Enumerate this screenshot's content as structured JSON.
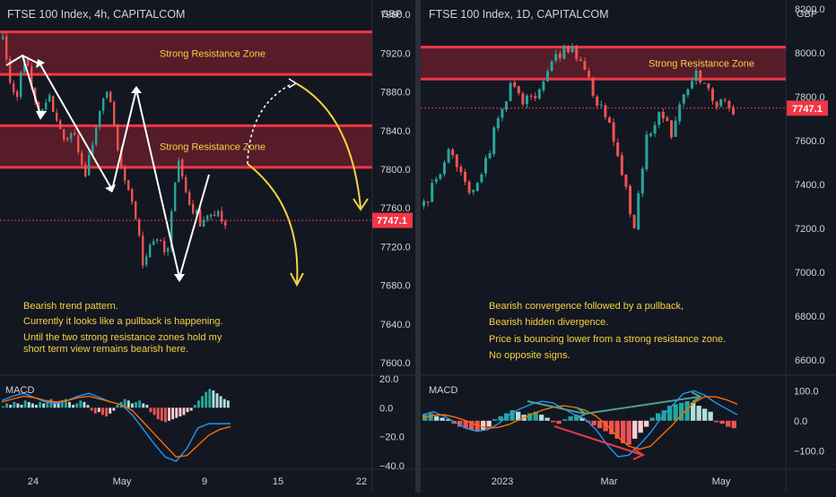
{
  "chart_data": [
    {
      "type": "candlestick",
      "title": "FTSE 100 Index, 4h, CAPITALCOM",
      "currency": "GBP",
      "last_price": "7747.1",
      "x_ticks": [
        "24",
        "May",
        "9",
        "15",
        "22"
      ],
      "price_ticks": [
        "7960.0",
        "7920.0",
        "7880.0",
        "7840.0",
        "7800.0",
        "7760.0",
        "7720.0",
        "7680.0",
        "7640.0",
        "7600.0"
      ],
      "price_axis": {
        "min": 7587,
        "max": 7975
      },
      "zones": [
        {
          "label": "Strong Resistance Zone",
          "from": 7898,
          "to": 7942
        },
        {
          "label": "Strong Resistance Zone",
          "from": 7802,
          "to": 7845
        }
      ],
      "notes": [
        "Bearish trend pattern.",
        "Currently it looks like a pullback is happening.",
        "Until the two strong resistance zones hold my",
        "short term view remains bearish here."
      ],
      "path": [
        7935,
        7870,
        7920,
        7858,
        7872,
        7838,
        7835,
        7790,
        7845,
        7892,
        7800,
        7770,
        7700,
        7730,
        7715,
        7808,
        7765,
        7742,
        7752,
        7747
      ],
      "macd": {
        "label": "MACD",
        "ticks": [
          "20.0",
          "0.0",
          "−20.0",
          "−40.0"
        ],
        "axis": {
          "min": -40,
          "max": 20
        },
        "histogram": [
          1,
          3,
          2,
          4,
          3,
          2,
          5,
          4,
          3,
          2,
          4,
          3,
          5,
          6,
          4,
          3,
          5,
          6,
          4,
          2,
          3,
          5,
          4,
          2,
          -2,
          -4,
          -3,
          -5,
          -6,
          -4,
          -2,
          2,
          4,
          6,
          5,
          3,
          4,
          5,
          3,
          2,
          -3,
          -5,
          -8,
          -9,
          -10,
          -9,
          -8,
          -7,
          -6,
          -5,
          -3,
          -2,
          2,
          5,
          8,
          11,
          13,
          12,
          10,
          8,
          6,
          5
        ],
        "macd_line": [
          5,
          8,
          10,
          7,
          4,
          3,
          5,
          8,
          10,
          7,
          4,
          2,
          -5,
          -15,
          -25,
          -34,
          -37,
          -28,
          -14,
          -11,
          -11,
          -11
        ],
        "signal_line": [
          4,
          6,
          8,
          7,
          5,
          4,
          5,
          7,
          8,
          6,
          4,
          2,
          -2,
          -10,
          -18,
          -26,
          -34,
          -33,
          -26,
          -19,
          -15,
          -13
        ]
      }
    },
    {
      "type": "candlestick",
      "title": "FTSE 100 Index, 1D, CAPITALCOM",
      "currency": "GBP",
      "last_price": "7747.1",
      "x_ticks": [
        "2023",
        "Mar",
        "May"
      ],
      "price_ticks": [
        "8200.0",
        "8000.0",
        "7800.0",
        "7600.0",
        "7400.0",
        "7200.0",
        "7000.0",
        "6800.0",
        "6600.0"
      ],
      "price_axis": {
        "min": 6530,
        "max": 8240
      },
      "zones": [
        {
          "label": "Strong Resistance Zone",
          "from": 7880,
          "to": 8025
        }
      ],
      "notes": [
        "Bearish convergence followed by a pullback,",
        "Bearish hidden divergence.",
        "Price is bouncing lower from a strong resistance zone.",
        "No opposite signs."
      ],
      "path": [
        7300,
        7420,
        7550,
        7450,
        7350,
        7500,
        7700,
        7860,
        7770,
        7800,
        7910,
        8000,
        8020,
        7910,
        7780,
        7700,
        7430,
        7220,
        7600,
        7700,
        7640,
        7790,
        7900,
        7820,
        7760,
        7747
      ],
      "macd": {
        "label": "MACD",
        "ticks": [
          "100.0",
          "0.0",
          "−100.0"
        ],
        "axis": {
          "min": -150,
          "max": 140
        },
        "histogram": [
          20,
          25,
          15,
          10,
          5,
          -10,
          -20,
          -25,
          -30,
          -35,
          -30,
          -20,
          5,
          15,
          25,
          35,
          30,
          20,
          25,
          30,
          20,
          10,
          -5,
          -10,
          5,
          15,
          20,
          10,
          -5,
          -15,
          -25,
          -35,
          -45,
          -60,
          -75,
          -80,
          -60,
          -40,
          -20,
          10,
          25,
          35,
          50,
          55,
          60,
          65,
          60,
          50,
          40,
          30,
          -5,
          -10,
          -20,
          -25
        ],
        "macd_line": [
          20,
          30,
          15,
          -5,
          -25,
          -35,
          -30,
          -10,
          20,
          40,
          55,
          65,
          60,
          40,
          20,
          5,
          -30,
          -80,
          -120,
          -115,
          -80,
          -40,
          10,
          50,
          90,
          100,
          85,
          60,
          40,
          20
        ],
        "signal_line": [
          10,
          18,
          20,
          12,
          0,
          -15,
          -25,
          -22,
          -12,
          5,
          20,
          35,
          45,
          50,
          45,
          35,
          15,
          -15,
          -55,
          -85,
          -95,
          -85,
          -50,
          -15,
          25,
          60,
          80,
          80,
          70,
          55
        ]
      }
    }
  ]
}
